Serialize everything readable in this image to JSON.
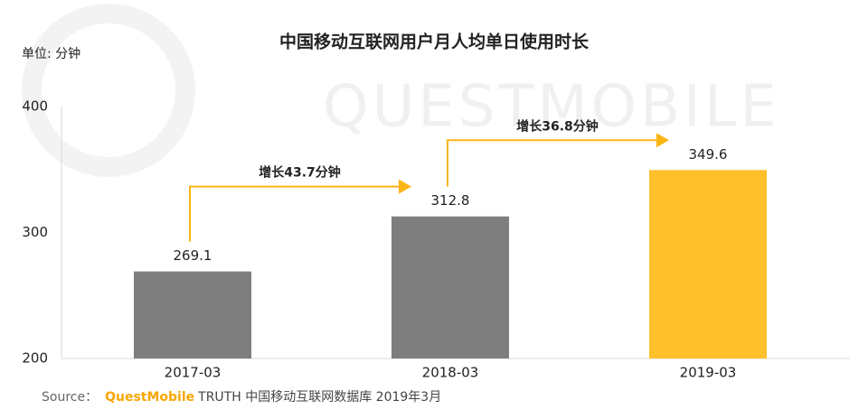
{
  "chart_data": {
    "type": "bar",
    "title": "中国移动互联网用户月人均单日使用时长",
    "unit_label": "单位: 分钟",
    "watermark": "QUESTMOBILE",
    "categories": [
      "2017-03",
      "2018-03",
      "2019-03"
    ],
    "values": [
      269.1,
      312.8,
      349.6
    ],
    "colors": [
      "#7f7e7f",
      "#7f7e7f",
      "#fec12c"
    ],
    "ylim": [
      200,
      400
    ],
    "yticks": [
      200,
      300,
      400
    ],
    "grid": false,
    "annotations": [
      "增长43.7分钟",
      "增长36.8分钟"
    ],
    "annotation_color": "#fbb515",
    "source": {
      "prefix": "Source：",
      "brand": "QuestMobile",
      "text": "TRUTH 中国移动互联网数据库 2019年3月"
    }
  }
}
